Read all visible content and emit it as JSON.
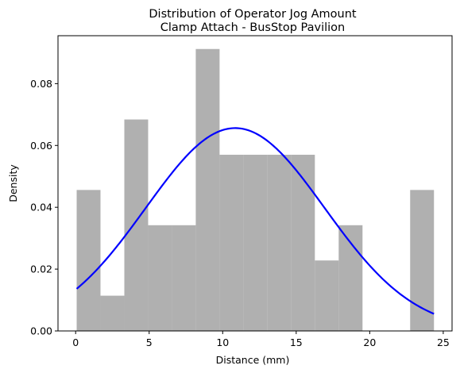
{
  "chart_data": {
    "type": "bar",
    "title_lines": [
      "Distribution of Operator Jog Amount",
      "Clamp Attach - BusStop Pavilion"
    ],
    "xlabel": "Distance (mm)",
    "ylabel": "Density",
    "xlim": [
      -1.2,
      25.6
    ],
    "ylim": [
      0,
      0.0955
    ],
    "xticks": [
      0,
      5,
      10,
      15,
      20,
      25
    ],
    "yticks": [
      0.0,
      0.02,
      0.04,
      0.06,
      0.08
    ],
    "ytick_labels": [
      "0.00",
      "0.02",
      "0.04",
      "0.06",
      "0.08"
    ],
    "grid": false,
    "bar_color": "#b0b0b0",
    "bins": [
      {
        "x0": 0.07,
        "x1": 1.69,
        "density": 0.0456
      },
      {
        "x0": 1.69,
        "x1": 3.31,
        "density": 0.0114
      },
      {
        "x0": 3.31,
        "x1": 4.93,
        "density": 0.0684
      },
      {
        "x0": 4.93,
        "x1": 6.55,
        "density": 0.0342
      },
      {
        "x0": 6.55,
        "x1": 8.17,
        "density": 0.0342
      },
      {
        "x0": 8.17,
        "x1": 9.79,
        "density": 0.0912
      },
      {
        "x0": 9.79,
        "x1": 11.41,
        "density": 0.057
      },
      {
        "x0": 11.41,
        "x1": 13.03,
        "density": 0.057
      },
      {
        "x0": 13.03,
        "x1": 14.65,
        "density": 0.057
      },
      {
        "x0": 14.65,
        "x1": 16.27,
        "density": 0.057
      },
      {
        "x0": 16.27,
        "x1": 17.89,
        "density": 0.0228
      },
      {
        "x0": 17.89,
        "x1": 19.51,
        "density": 0.0342
      },
      {
        "x0": 19.51,
        "x1": 21.13,
        "density": 0.0
      },
      {
        "x0": 21.13,
        "x1": 22.75,
        "density": 0.0
      },
      {
        "x0": 22.75,
        "x1": 24.37,
        "density": 0.0456
      }
    ],
    "fit_curve": {
      "type": "normal-pdf",
      "color": "#0000ff",
      "mean": 10.85,
      "std": 6.08,
      "x_range": [
        0.07,
        24.37
      ]
    }
  }
}
